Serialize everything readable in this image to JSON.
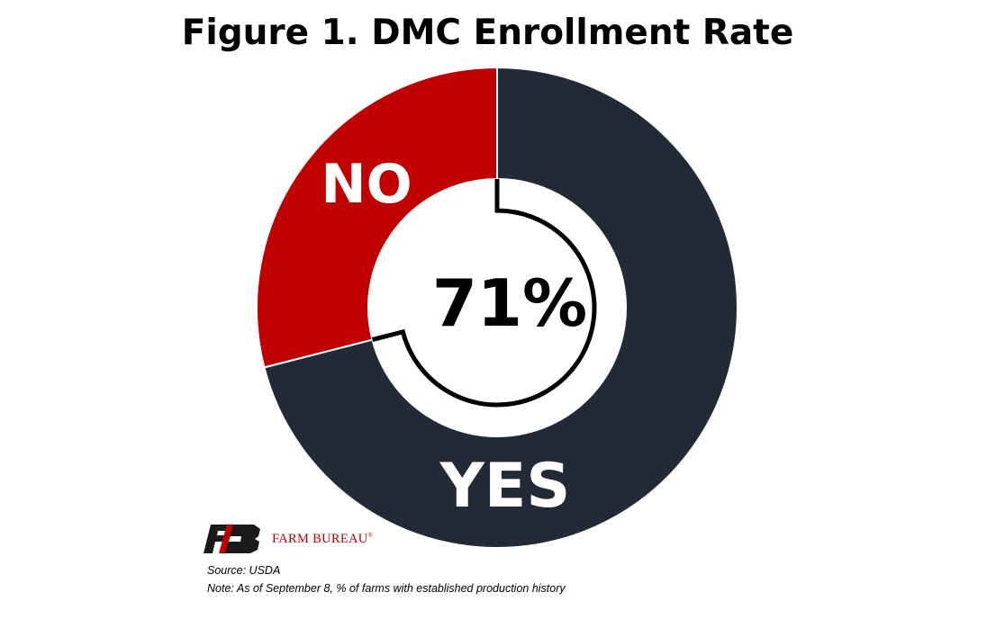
{
  "chart_data": {
    "type": "pie",
    "title": "Figure 1. DMC Enrollment Rate",
    "categories": [
      "YES",
      "NO"
    ],
    "values": [
      71,
      29
    ],
    "center_label": "71%",
    "colors": {
      "YES": "#232a37",
      "NO": "#c00000"
    },
    "highlight_ring_color": "#000000"
  },
  "logo": {
    "text": "FARM BUREAU",
    "mark": "FB",
    "color": "#c00000"
  },
  "footer": {
    "source": "Source:  USDA",
    "note": "Note: As of September 8, % of farms with established production history"
  }
}
